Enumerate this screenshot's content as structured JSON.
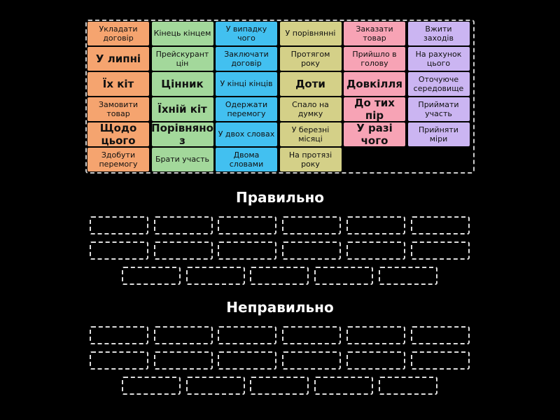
{
  "column_colors": [
    "#f5a46f",
    "#a3d89b",
    "#42c0f0",
    "#d4d088",
    "#f7a3b5",
    "#cbb5f2"
  ],
  "tiles": [
    [
      "Укладати договір",
      "Кінець кінцем",
      "У випадку чого",
      "У порівнянні",
      "Заказати товар",
      "Вжити заходів"
    ],
    [
      "У липні",
      "Прейскурант цін",
      "Заключати договір",
      "Протягом року",
      "Прийшло в голову",
      "На рахунок цього"
    ],
    [
      "Їх кіт",
      "Цінник",
      "У кінці кінців",
      "Доти",
      "Довкілля",
      "Оточуюче середовище"
    ],
    [
      "Замовити товар",
      "Їхній кіт",
      "Одержати перемогу",
      "Спало на думку",
      "До тих пір",
      "Приймати участь"
    ],
    [
      "Щодо цього",
      "Порівняно з",
      "У двох словах",
      "У березні місяці",
      "У разі чого",
      "Прийняти міри"
    ],
    [
      "Здобути перемогу",
      "Брати участь",
      "Двома словами",
      "На протязі року"
    ]
  ],
  "groups": [
    {
      "title": "Правильно"
    },
    {
      "title": "Неправильно"
    }
  ]
}
